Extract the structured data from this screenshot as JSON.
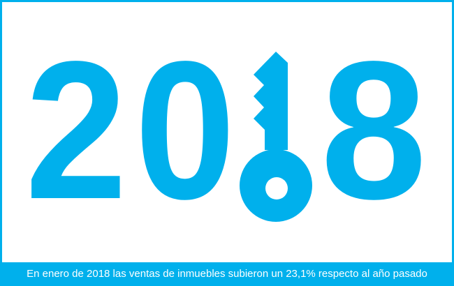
{
  "graphic": {
    "year_digits": [
      "2",
      "0",
      "8"
    ],
    "key_icon": "key-icon",
    "color": "#00b0ec"
  },
  "caption": "En enero de 2018 las ventas de inmuebles subieron un 23,1% respecto al año pasado"
}
